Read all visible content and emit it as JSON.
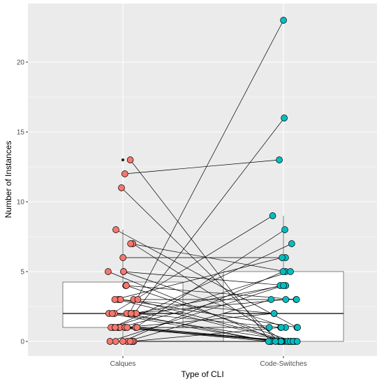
{
  "chart_data": {
    "type": "scatter",
    "title": "",
    "xlabel": "Type of CLI",
    "ylabel": "Number of Instances",
    "categories": [
      "Calques",
      "Code-Switches"
    ],
    "y_ticks": [
      0,
      5,
      10,
      15,
      20
    ],
    "ylim": [
      -0.85,
      23.85
    ],
    "grid": true,
    "legend": "none",
    "colors": {
      "Calques": "#f8766d",
      "Code-Switches": "#00bfc4",
      "panel": "#ebebeb",
      "grid": "#ffffff",
      "box": "#000000"
    },
    "boxplots": [
      {
        "category": "Calques",
        "q1": 1,
        "median": 2,
        "q3": 4.25,
        "whisker_low": 0,
        "whisker_high": 8,
        "outliers": [
          11,
          12,
          13
        ]
      },
      {
        "category": "Code-Switches",
        "q1": 0,
        "median": 2,
        "q3": 5,
        "whisker_low": 0,
        "whisker_high": 9,
        "outliers": [
          16,
          23
        ]
      }
    ],
    "pairs": [
      [
        13,
        0
      ],
      [
        12,
        13
      ],
      [
        11,
        0
      ],
      [
        8,
        1
      ],
      [
        7,
        0
      ],
      [
        7,
        5
      ],
      [
        6,
        6
      ],
      [
        5,
        4
      ],
      [
        5,
        1
      ],
      [
        5,
        0
      ],
      [
        4,
        3
      ],
      [
        4,
        0
      ],
      [
        3,
        2
      ],
      [
        3,
        0
      ],
      [
        3,
        0
      ],
      [
        3,
        1
      ],
      [
        3,
        6
      ],
      [
        3,
        3
      ],
      [
        2,
        23
      ],
      [
        2,
        16
      ],
      [
        2,
        4
      ],
      [
        2,
        0
      ],
      [
        2,
        0
      ],
      [
        2,
        1
      ],
      [
        2,
        0
      ],
      [
        2,
        3
      ],
      [
        2,
        9
      ],
      [
        1,
        8
      ],
      [
        1,
        7
      ],
      [
        1,
        0
      ],
      [
        1,
        0
      ],
      [
        1,
        1
      ],
      [
        1,
        4
      ],
      [
        1,
        2
      ],
      [
        1,
        5
      ],
      [
        1,
        0
      ],
      [
        1,
        0
      ],
      [
        1,
        0
      ],
      [
        0,
        0
      ],
      [
        0,
        1
      ],
      [
        0,
        0
      ],
      [
        0,
        3
      ],
      [
        0,
        4
      ],
      [
        0,
        5
      ],
      [
        0,
        0
      ],
      [
        0,
        0
      ]
    ]
  }
}
